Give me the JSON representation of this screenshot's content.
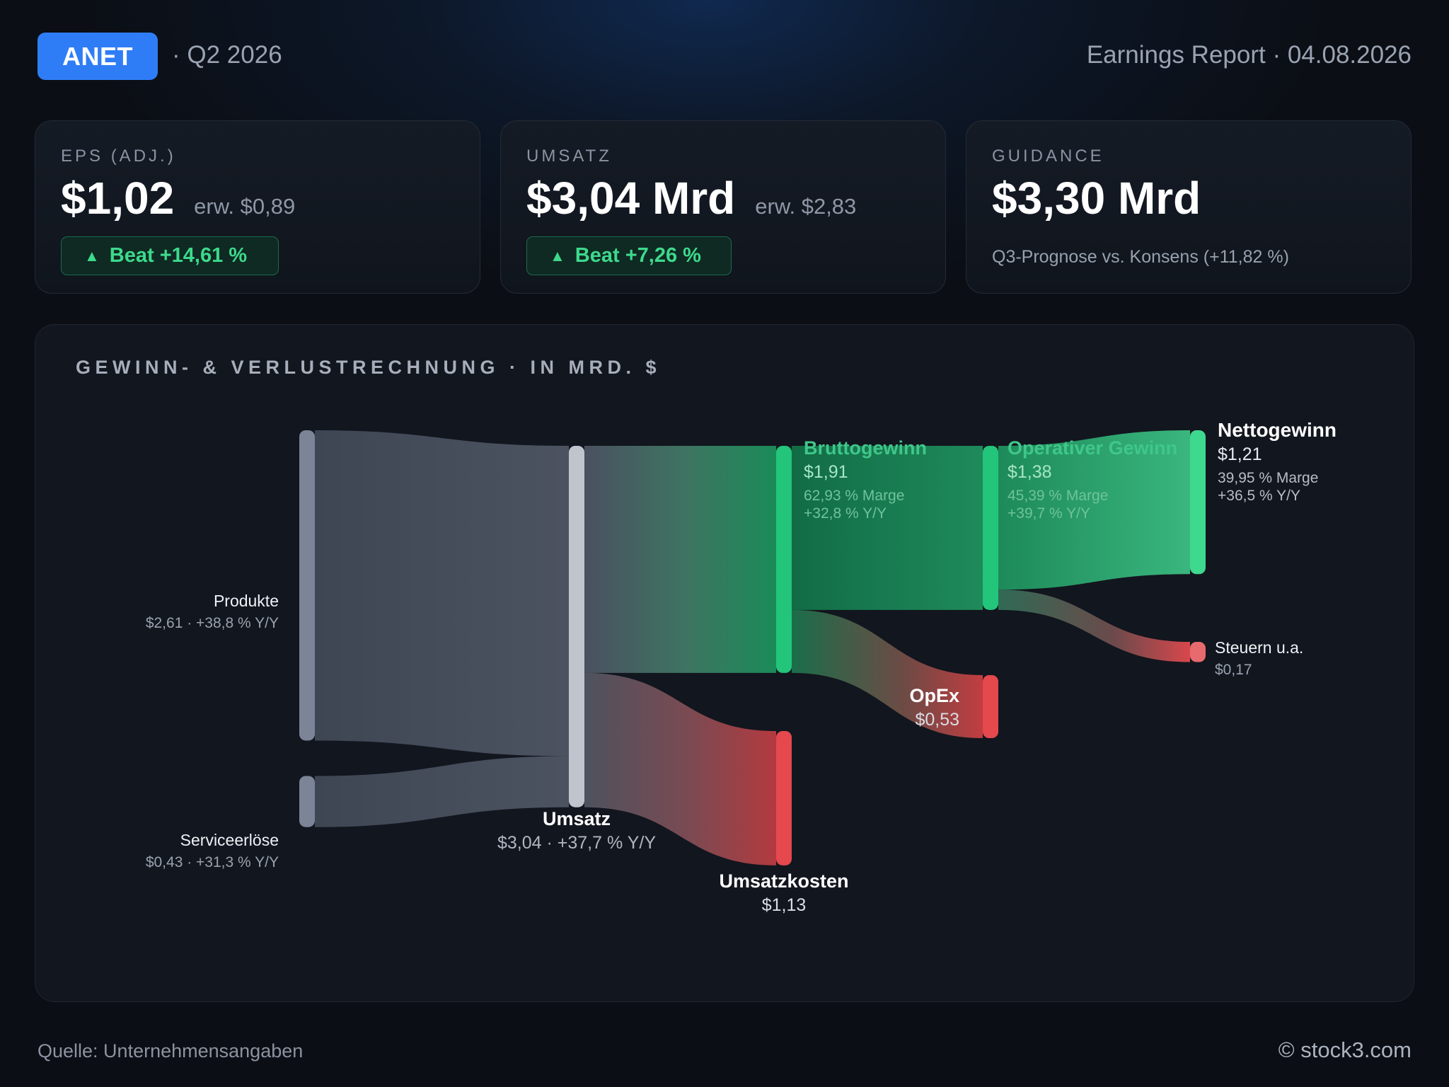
{
  "header": {
    "ticker": "ANET",
    "quarter": "· Q2 2026",
    "report": "Earnings Report · 04.08.2026"
  },
  "cards": {
    "eps": {
      "label": "EPS (ADJ.)",
      "value": "$1,02",
      "expected": "erw. $0,89",
      "badge": "Beat +14,61 %"
    },
    "revenue": {
      "label": "UMSATZ",
      "value": "$3,04 Mrd",
      "expected": "erw. $2,83",
      "badge": "Beat +7,26 %"
    },
    "guidance": {
      "label": "GUIDANCE",
      "value": "$3,30 Mrd",
      "note": "Q3-Prognose vs. Konsens (+11,82 %)"
    }
  },
  "panel": {
    "title": "GEWINN- & VERLUSTRECHNUNG · IN MRD. $"
  },
  "nodes": {
    "produkte": {
      "name": "Produkte",
      "sub": "$2,61 · +38,8 % Y/Y"
    },
    "service": {
      "name": "Serviceerlöse",
      "sub": "$0,43 · +31,3 % Y/Y"
    },
    "umsatz": {
      "name": "Umsatz",
      "sub": "$3,04 · +37,7 % Y/Y"
    },
    "bruttogewinn": {
      "name": "Bruttogewinn",
      "value": "$1,91",
      "margin": "62,93 % Marge",
      "yoy": "+32,8 % Y/Y"
    },
    "umsatzkosten": {
      "name": "Umsatzkosten",
      "value": "$1,13"
    },
    "opgewinn": {
      "name": "Operativer Gewinn",
      "value": "$1,38",
      "margin": "45,39 % Marge",
      "yoy": "+39,7 % Y/Y"
    },
    "opex": {
      "name": "OpEx",
      "value": "$0,53"
    },
    "nettogewinn": {
      "name": "Nettogewinn",
      "value": "$1,21",
      "margin": "39,95 % Marge",
      "yoy": "+36,5 % Y/Y"
    },
    "steuern": {
      "name": "Steuern u.a.",
      "value": "$0,17"
    }
  },
  "chart_data": {
    "type": "sankey",
    "title": "GEWINN- & VERLUSTRECHNUNG · IN MRD. $",
    "unit": "Mrd. $",
    "links": [
      {
        "source": "Produkte",
        "target": "Umsatz",
        "value": 2.61
      },
      {
        "source": "Serviceerlöse",
        "target": "Umsatz",
        "value": 0.43
      },
      {
        "source": "Umsatz",
        "target": "Bruttogewinn",
        "value": 1.91
      },
      {
        "source": "Umsatz",
        "target": "Umsatzkosten",
        "value": 1.13
      },
      {
        "source": "Bruttogewinn",
        "target": "Operativer Gewinn",
        "value": 1.38
      },
      {
        "source": "Bruttogewinn",
        "target": "OpEx",
        "value": 0.53
      },
      {
        "source": "Operativer Gewinn",
        "target": "Nettogewinn",
        "value": 1.21
      },
      {
        "source": "Operativer Gewinn",
        "target": "Steuern u.a.",
        "value": 0.17
      }
    ],
    "colors": {
      "neutral": "#7b8597",
      "profit": "#22c57a",
      "cost": "#e5484d"
    }
  },
  "footer": {
    "source": "Quelle: Unternehmensangaben",
    "brand": "© stock3.com"
  }
}
